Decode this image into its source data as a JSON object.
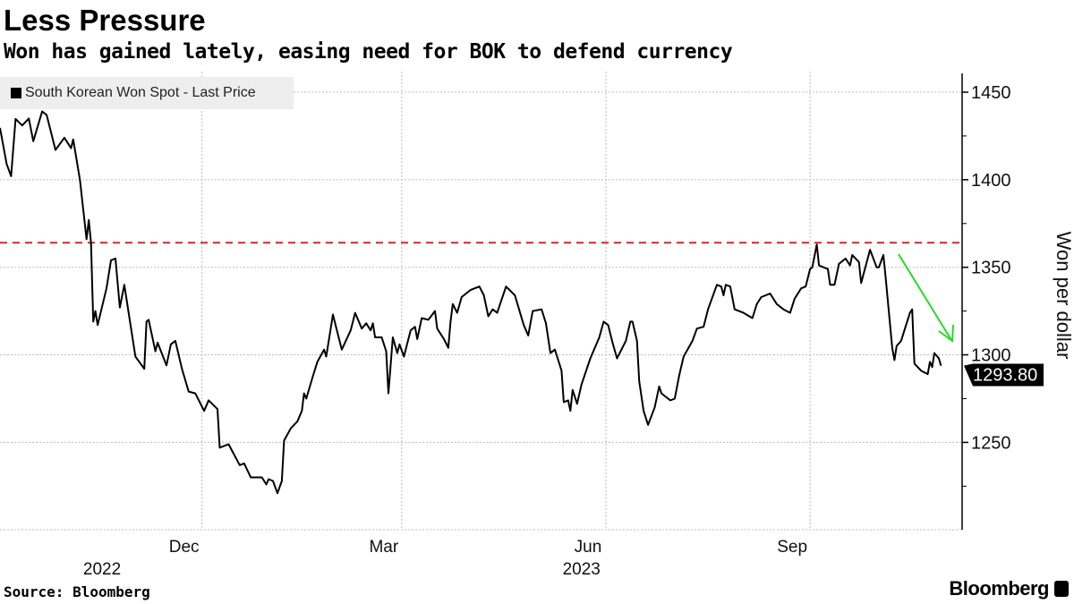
{
  "header": {
    "title": "Less Pressure",
    "subtitle": "Won has gained lately, easing need for BOK to defend currency"
  },
  "footer": {
    "source": "Source: Bloomberg",
    "brand": "Bloomberg"
  },
  "chart_data": {
    "type": "line",
    "title": "Less Pressure",
    "subtitle": "Won has gained lately, easing need for BOK to defend currency",
    "ylabel": "Won per dollar",
    "xlabel": "",
    "x_units": "days since 2022-09-01",
    "xlim": [
      0,
      433.5
    ],
    "ylim": [
      1200,
      1460
    ],
    "yticks": [
      1250,
      1300,
      1350,
      1400,
      1450
    ],
    "xticks": [
      {
        "label": "Dec",
        "day": 91
      },
      {
        "label": "Mar",
        "day": 181
      },
      {
        "label": "Jun",
        "day": 273
      },
      {
        "label": "Sep",
        "day": 365
      }
    ],
    "year_labels": [
      {
        "label": "2022",
        "day": 46
      },
      {
        "label": "2023",
        "day": 262
      }
    ],
    "legend": {
      "position": "top-left",
      "entries": [
        "South Korean Won Spot - Last Price"
      ]
    },
    "grid": true,
    "last_price_label": "1293.80",
    "reference_line": {
      "value": 1364,
      "color": "#e02020",
      "style": "dashed"
    },
    "annotation": {
      "type": "arrow",
      "color": "#22dd22",
      "direction": "down-right"
    },
    "series": [
      {
        "name": "South Korean Won Spot - Last Price",
        "color": "#000000",
        "points": [
          [
            0,
            1429.6
          ],
          [
            3,
            1409
          ],
          [
            5,
            1402
          ],
          [
            7,
            1434.7
          ],
          [
            10,
            1431
          ],
          [
            13,
            1435
          ],
          [
            15,
            1422
          ],
          [
            19,
            1439
          ],
          [
            21,
            1437
          ],
          [
            25,
            1417
          ],
          [
            29,
            1424
          ],
          [
            32,
            1418
          ],
          [
            33,
            1423
          ],
          [
            36,
            1400
          ],
          [
            39,
            1366
          ],
          [
            40,
            1377
          ],
          [
            41,
            1364
          ],
          [
            42,
            1319
          ],
          [
            43,
            1325
          ],
          [
            44,
            1317
          ],
          [
            48,
            1338
          ],
          [
            50,
            1354
          ],
          [
            52,
            1355
          ],
          [
            54,
            1327
          ],
          [
            56,
            1340
          ],
          [
            61,
            1299
          ],
          [
            65,
            1292
          ],
          [
            66,
            1319
          ],
          [
            67,
            1320
          ],
          [
            70,
            1302
          ],
          [
            71,
            1307
          ],
          [
            75,
            1294
          ],
          [
            77,
            1306
          ],
          [
            79,
            1308
          ],
          [
            82,
            1292
          ],
          [
            85,
            1279
          ],
          [
            88,
            1278
          ],
          [
            92,
            1268
          ],
          [
            94,
            1274
          ],
          [
            98,
            1269
          ],
          [
            99,
            1247
          ],
          [
            103,
            1249
          ],
          [
            108,
            1237
          ],
          [
            110,
            1238
          ],
          [
            113,
            1230
          ],
          [
            118,
            1230
          ],
          [
            120,
            1226
          ],
          [
            121,
            1229
          ],
          [
            123,
            1228
          ],
          [
            125,
            1221
          ],
          [
            127,
            1228
          ],
          [
            128,
            1251
          ],
          [
            131,
            1258
          ],
          [
            134,
            1262
          ],
          [
            136,
            1268
          ],
          [
            137,
            1278
          ],
          [
            138,
            1275
          ],
          [
            141,
            1288
          ],
          [
            143,
            1296
          ],
          [
            146,
            1303
          ],
          [
            147,
            1299
          ],
          [
            150,
            1323
          ],
          [
            152,
            1313
          ],
          [
            154,
            1303
          ],
          [
            158,
            1314
          ],
          [
            160,
            1324
          ],
          [
            163,
            1315
          ],
          [
            165,
            1318
          ],
          [
            167,
            1314
          ],
          [
            168,
            1318
          ],
          [
            169,
            1310
          ],
          [
            172,
            1310
          ],
          [
            174,
            1302
          ],
          [
            175,
            1278
          ],
          [
            177,
            1310
          ],
          [
            179,
            1301
          ],
          [
            180,
            1306
          ],
          [
            182,
            1299
          ],
          [
            185,
            1314
          ],
          [
            187,
            1316
          ],
          [
            188,
            1309
          ],
          [
            190,
            1321
          ],
          [
            193,
            1320
          ],
          [
            196,
            1325
          ],
          [
            197,
            1315
          ],
          [
            200,
            1309
          ],
          [
            202,
            1304
          ],
          [
            203,
            1319
          ],
          [
            204,
            1329
          ],
          [
            206,
            1324
          ],
          [
            208,
            1333
          ],
          [
            212,
            1337
          ],
          [
            216,
            1339
          ],
          [
            218,
            1334
          ],
          [
            220,
            1322
          ],
          [
            222,
            1326
          ],
          [
            224,
            1324
          ],
          [
            228,
            1339
          ],
          [
            232,
            1334
          ],
          [
            236,
            1317
          ],
          [
            238,
            1311
          ],
          [
            240,
            1325
          ],
          [
            244,
            1326
          ],
          [
            246,
            1318
          ],
          [
            248,
            1301
          ],
          [
            250,
            1303
          ],
          [
            253,
            1291
          ],
          [
            254,
            1273
          ],
          [
            256,
            1274
          ],
          [
            257,
            1268
          ],
          [
            258,
            1280
          ],
          [
            260,
            1272
          ],
          [
            262,
            1283
          ],
          [
            266,
            1298
          ],
          [
            270,
            1310
          ],
          [
            272,
            1319
          ],
          [
            274,
            1317
          ],
          [
            276,
            1307
          ],
          [
            278,
            1298
          ],
          [
            282,
            1308
          ],
          [
            284,
            1319
          ],
          [
            285,
            1319
          ],
          [
            287,
            1308
          ],
          [
            288,
            1285
          ],
          [
            290,
            1268
          ],
          [
            292,
            1260
          ],
          [
            295,
            1270
          ],
          [
            297,
            1282
          ],
          [
            298,
            1278
          ],
          [
            302,
            1274
          ],
          [
            304,
            1275
          ],
          [
            306,
            1288
          ],
          [
            308,
            1299
          ],
          [
            312,
            1308
          ],
          [
            314,
            1315
          ],
          [
            317,
            1316
          ],
          [
            319,
            1326
          ],
          [
            323,
            1340
          ],
          [
            325,
            1339
          ],
          [
            326,
            1334
          ],
          [
            327,
            1340
          ],
          [
            329,
            1339
          ],
          [
            331,
            1326
          ],
          [
            335,
            1324
          ],
          [
            339,
            1321
          ],
          [
            341,
            1329
          ],
          [
            343,
            1333
          ],
          [
            347,
            1335
          ],
          [
            350,
            1329
          ],
          [
            353,
            1326
          ],
          [
            356,
            1324
          ],
          [
            358,
            1332
          ],
          [
            361,
            1338
          ],
          [
            363,
            1339
          ],
          [
            365,
            1349
          ],
          [
            366,
            1350
          ],
          [
            368,
            1363
          ],
          [
            369,
            1351
          ],
          [
            373,
            1349
          ],
          [
            374,
            1340
          ],
          [
            376,
            1340
          ],
          [
            378,
            1352
          ],
          [
            381,
            1355
          ],
          [
            383,
            1351
          ],
          [
            384,
            1357
          ],
          [
            387,
            1353
          ],
          [
            388,
            1341
          ],
          [
            392,
            1360
          ],
          [
            395,
            1350
          ],
          [
            396,
            1350
          ],
          [
            398,
            1357
          ],
          [
            399,
            1345
          ],
          [
            402,
            1304
          ],
          [
            403,
            1297
          ],
          [
            404,
            1305
          ],
          [
            406,
            1308
          ],
          [
            410,
            1324
          ],
          [
            411,
            1326
          ],
          [
            412,
            1295
          ],
          [
            415,
            1291
          ],
          [
            418,
            1289
          ],
          [
            419,
            1296
          ],
          [
            420,
            1293
          ],
          [
            421,
            1301
          ],
          [
            423,
            1298
          ],
          [
            424,
            1293.8
          ]
        ]
      }
    ]
  }
}
